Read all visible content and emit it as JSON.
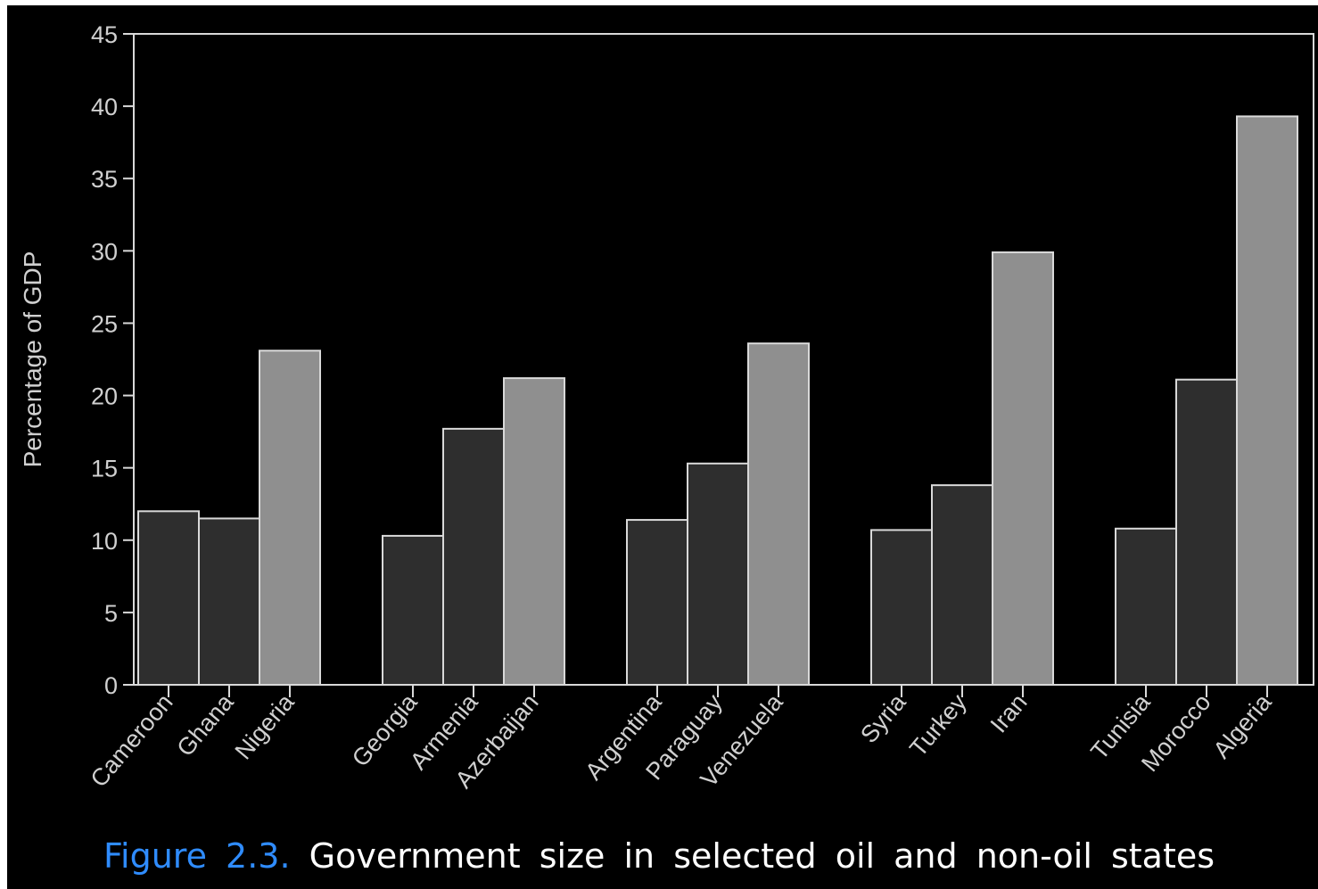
{
  "colors": {
    "background": "#000000",
    "frame": "#d9d9d9",
    "text": "#d0d0d0",
    "non_oil_bar": "#2e2e2e",
    "oil_bar": "#8f8f8f",
    "caption_label": "#2f8cff",
    "caption_text": "#ffffff"
  },
  "chart_data": {
    "type": "bar",
    "title": "",
    "xlabel": "",
    "ylabel": "Percentage of GDP",
    "ylim": [
      0,
      45
    ],
    "yticks": [
      0,
      5,
      10,
      15,
      20,
      25,
      30,
      35,
      40,
      45
    ],
    "grid": false,
    "legend": "none",
    "groups": [
      {
        "bars": [
          {
            "category": "Cameroon",
            "value": 12.0,
            "kind": "non-oil"
          },
          {
            "category": "Ghana",
            "value": 11.5,
            "kind": "non-oil"
          },
          {
            "category": "Nigeria",
            "value": 23.1,
            "kind": "oil"
          }
        ]
      },
      {
        "bars": [
          {
            "category": "Georgia",
            "value": 10.3,
            "kind": "non-oil"
          },
          {
            "category": "Armenia",
            "value": 17.7,
            "kind": "non-oil"
          },
          {
            "category": "Azerbaijan",
            "value": 21.2,
            "kind": "oil"
          }
        ]
      },
      {
        "bars": [
          {
            "category": "Argentina",
            "value": 11.4,
            "kind": "non-oil"
          },
          {
            "category": "Paraguay",
            "value": 15.3,
            "kind": "non-oil"
          },
          {
            "category": "Venezuela",
            "value": 23.6,
            "kind": "oil"
          }
        ]
      },
      {
        "bars": [
          {
            "category": "Syria",
            "value": 10.7,
            "kind": "non-oil"
          },
          {
            "category": "Turkey",
            "value": 13.8,
            "kind": "non-oil"
          },
          {
            "category": "Iran",
            "value": 29.9,
            "kind": "oil"
          }
        ]
      },
      {
        "bars": [
          {
            "category": "Tunisia",
            "value": 10.8,
            "kind": "non-oil"
          },
          {
            "category": "Morocco",
            "value": 21.1,
            "kind": "non-oil"
          },
          {
            "category": "Algeria",
            "value": 39.3,
            "kind": "oil"
          }
        ]
      }
    ]
  },
  "caption": {
    "label": "Figure 2.3.",
    "text": "Government size in selected oil and non-oil states"
  }
}
